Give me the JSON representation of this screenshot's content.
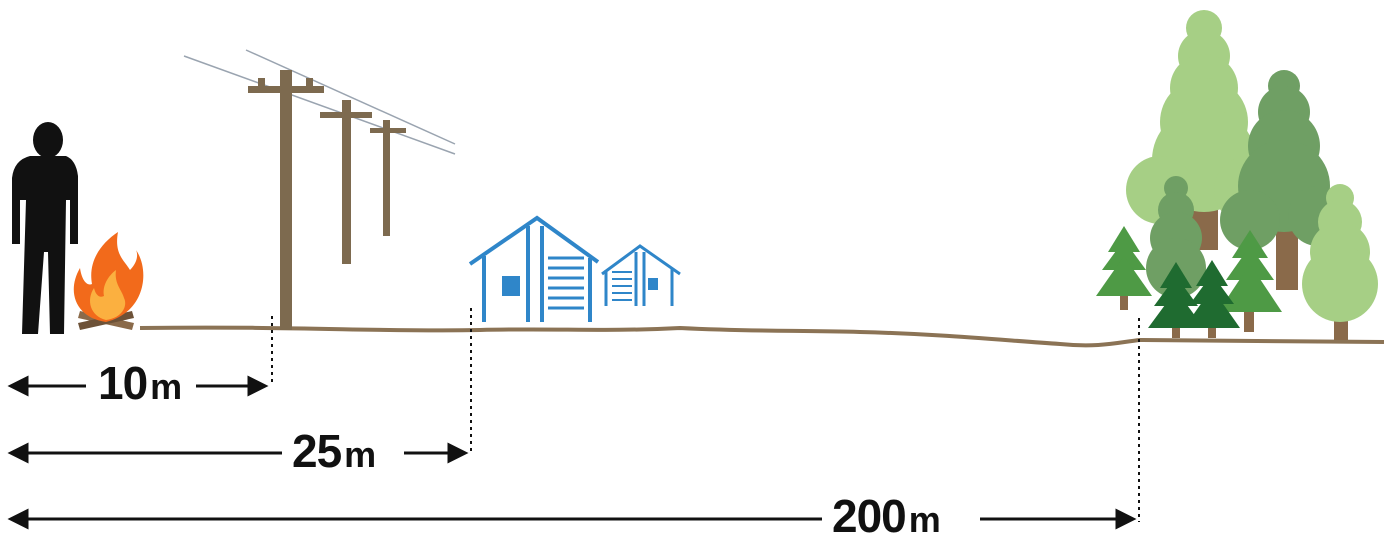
{
  "distances": [
    {
      "value": "10",
      "unit": "m"
    },
    {
      "value": "25",
      "unit": "m"
    },
    {
      "value": "200",
      "unit": "m"
    }
  ],
  "colors": {
    "ground": "#8b7355",
    "person": "#111111",
    "pole": "#7d6a4f",
    "house": "#2f86c9",
    "tree_light": "#a6cf85",
    "tree_mid": "#6f9f64",
    "tree_dark": "#2f7a3c",
    "trunk": "#8a6a4a",
    "flame_outer": "#f26a1b",
    "flame_inner": "#fbb040"
  }
}
